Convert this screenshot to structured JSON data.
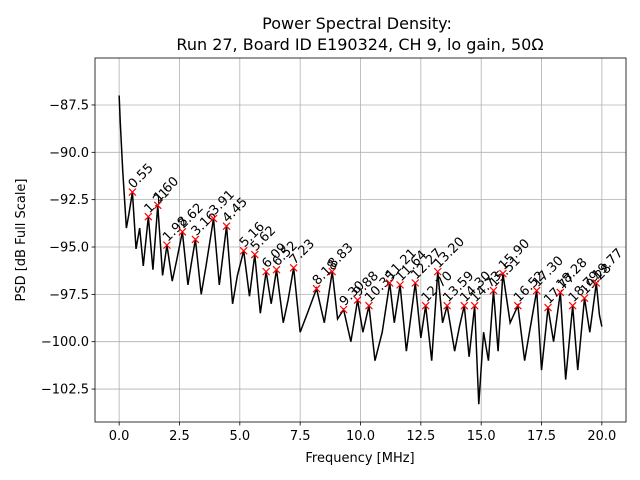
{
  "chart_data": {
    "type": "line",
    "title": [
      "Power Spectral Density:",
      "Run 27, Board ID E190324, CH 9, lo gain, 50Ω"
    ],
    "xlabel": "Frequency [MHz]",
    "ylabel": "PSD [dB Full Scale]",
    "grid": true,
    "xlim": [
      -1.0,
      21.0
    ],
    "ylim": [
      -104.24,
      -85.02
    ],
    "xticks": [
      {
        "value": 0,
        "label": "0.0"
      },
      {
        "value": 2.5,
        "label": "2.5"
      },
      {
        "value": 5,
        "label": "5.0"
      },
      {
        "value": 7.5,
        "label": "7.5"
      },
      {
        "value": 10,
        "label": "10.0"
      },
      {
        "value": 12.5,
        "label": "12.5"
      },
      {
        "value": 15,
        "label": "15.0"
      },
      {
        "value": 17.5,
        "label": "17.5"
      },
      {
        "value": 20,
        "label": "20.0"
      }
    ],
    "yticks": [
      {
        "value": -102.5,
        "label": "−102.5"
      },
      {
        "value": -100,
        "label": "−100.0"
      },
      {
        "value": -97.5,
        "label": "−97.5"
      },
      {
        "value": -95,
        "label": "−95.0"
      },
      {
        "value": -92.5,
        "label": "−92.5"
      },
      {
        "value": -90,
        "label": "−90.0"
      },
      {
        "value": -87.5,
        "label": "−87.5"
      }
    ],
    "color": "#000000",
    "x": [
      0,
      0.05,
      0.15,
      0.3,
      0.4,
      0.55,
      0.7,
      0.85,
      1.0,
      1.21,
      1.4,
      1.6,
      1.8,
      1.98,
      2.2,
      2.4,
      2.62,
      2.85,
      3.0,
      3.16,
      3.4,
      3.6,
      3.91,
      4.15,
      4.45,
      4.7,
      4.9,
      5.16,
      5.4,
      5.62,
      5.85,
      6.09,
      6.3,
      6.52,
      6.8,
      7.0,
      7.23,
      7.5,
      7.8,
      8.18,
      8.5,
      8.83,
      9.05,
      9.3,
      9.6,
      9.88,
      10.1,
      10.35,
      10.6,
      10.9,
      11.21,
      11.4,
      11.64,
      11.9,
      12.27,
      12.5,
      12.7,
      12.95,
      13.2,
      13.4,
      13.59,
      13.9,
      14.1,
      14.3,
      14.5,
      14.73,
      14.9,
      15.1,
      15.3,
      15.51,
      15.7,
      15.9,
      16.2,
      16.52,
      16.8,
      17.0,
      17.3,
      17.5,
      17.77,
      18.0,
      18.28,
      18.5,
      18.79,
      19.0,
      19.28,
      19.5,
      19.77,
      19.9,
      20.0
    ],
    "values": [
      -87.0,
      -88.5,
      -91.0,
      -94.0,
      -93.3,
      -92.1,
      -95.1,
      -94.0,
      -96.0,
      -93.4,
      -96.2,
      -92.8,
      -96.5,
      -94.9,
      -96.8,
      -95.6,
      -94.2,
      -97.0,
      -95.8,
      -94.6,
      -97.5,
      -96.0,
      -93.5,
      -97.0,
      -93.9,
      -98.0,
      -96.5,
      -95.2,
      -97.6,
      -95.4,
      -98.5,
      -96.3,
      -98.0,
      -96.2,
      -99.0,
      -97.8,
      -96.1,
      -99.5,
      -98.5,
      -97.2,
      -99.0,
      -96.3,
      -98.8,
      -98.3,
      -100.0,
      -97.8,
      -99.5,
      -98.1,
      -101.0,
      -99.5,
      -96.9,
      -99.0,
      -97.0,
      -100.5,
      -96.9,
      -99.8,
      -98.1,
      -101.0,
      -96.3,
      -99.0,
      -98.1,
      -100.5,
      -99.2,
      -98.1,
      -100.8,
      -98.1,
      -103.3,
      -99.5,
      -101.0,
      -97.3,
      -100.5,
      -96.4,
      -99.0,
      -98.1,
      -101.0,
      -99.5,
      -97.3,
      -101.5,
      -98.2,
      -100.0,
      -97.4,
      -102.0,
      -98.1,
      -101.5,
      -97.7,
      -99.5,
      -96.9,
      -98.6,
      -99.2
    ],
    "peaks": {
      "color": "#ff0000",
      "x": [
        0.55,
        1.21,
        1.6,
        1.98,
        2.62,
        3.16,
        3.91,
        4.45,
        5.16,
        5.62,
        6.09,
        6.52,
        7.23,
        8.18,
        8.83,
        9.3,
        9.88,
        10.35,
        11.21,
        11.64,
        12.27,
        12.7,
        13.2,
        13.59,
        14.3,
        14.73,
        15.51,
        15.9,
        16.52,
        17.3,
        17.77,
        18.28,
        18.79,
        19.28,
        19.77
      ],
      "values": [
        -92.1,
        -93.4,
        -92.8,
        -94.9,
        -94.2,
        -94.6,
        -93.5,
        -93.9,
        -95.2,
        -95.4,
        -96.3,
        -96.2,
        -96.1,
        -97.2,
        -96.3,
        -98.3,
        -97.8,
        -98.1,
        -96.9,
        -97.0,
        -96.9,
        -98.1,
        -96.3,
        -98.1,
        -98.1,
        -98.1,
        -97.3,
        -96.4,
        -98.1,
        -97.3,
        -98.2,
        -97.4,
        -98.1,
        -97.7,
        -96.9
      ],
      "labels": [
        "0.55",
        "1.21",
        "1.60",
        "1.98",
        "2.62",
        "3.16",
        "3.91",
        "4.45",
        "5.16",
        "5.62",
        "6.09",
        "6.52",
        "7.23",
        "8.18",
        "8.83",
        "9.30",
        "9.88",
        "10.35",
        "11.21",
        "11.64",
        "12.27",
        "12.70",
        "13.20",
        "13.59",
        "14.30",
        "14.73",
        "15.51",
        "15.90",
        "16.52",
        "17.30",
        "17.77",
        "18.28",
        "18.79",
        "19.28",
        "19.77"
      ]
    }
  }
}
